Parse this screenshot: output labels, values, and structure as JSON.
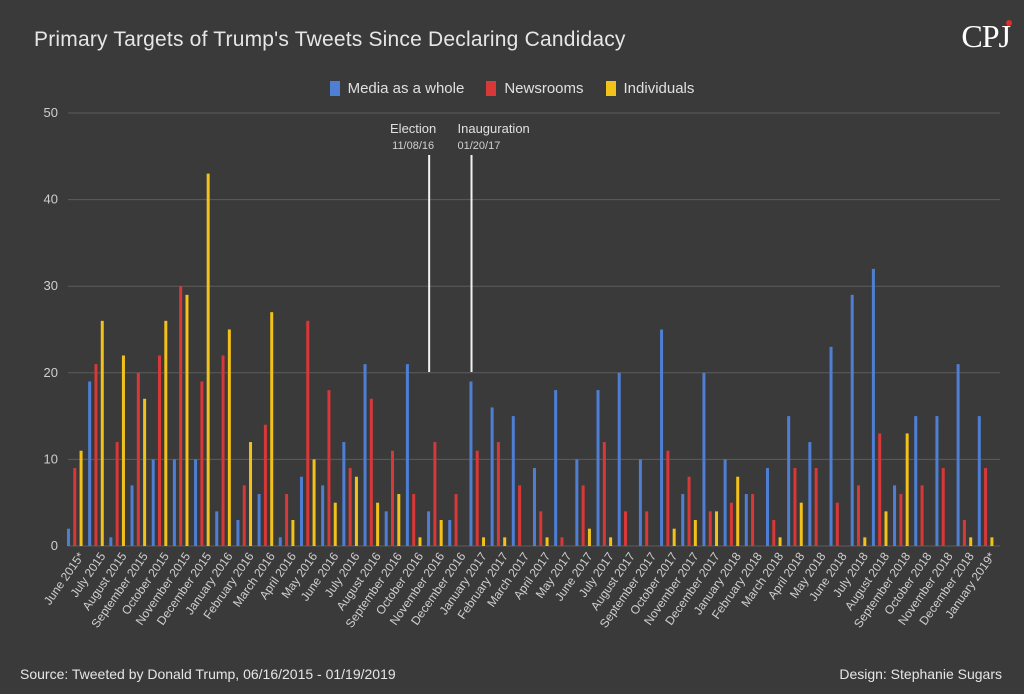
{
  "title": "Primary Targets of Trump's Tweets Since Declaring Candidacy",
  "logo": "CPJ",
  "source": "Source: Tweeted by Donald Trump, 06/16/2015 - 01/19/2019",
  "design": "Design: Stephanie Sugars",
  "colors": {
    "background": "#3a3a3a",
    "media": "#4f7fd4",
    "newsrooms": "#d93838",
    "individuals": "#f2c11a",
    "grid": "#5c5c5c"
  },
  "chart_data": {
    "type": "bar",
    "ylim": [
      0,
      50
    ],
    "yticks": [
      0,
      10,
      20,
      30,
      40,
      50
    ],
    "grid": true,
    "legend_position": "top-center",
    "categories": [
      "June 2015*",
      "July 2015",
      "August 2015",
      "September 2015",
      "October 2015",
      "November 2015",
      "December 2015",
      "January 2016",
      "February 2016",
      "March 2016",
      "April 2016",
      "May 2016",
      "June 2016",
      "July 2016",
      "August 2016",
      "September 2016",
      "October 2016",
      "November 2016",
      "December 2016",
      "January 2017",
      "February 2017",
      "March 2017",
      "April 2017",
      "May 2017",
      "June 2017",
      "July 2017",
      "August 2017",
      "September 2017",
      "October 2017",
      "November 2017",
      "December 2017",
      "January 2018",
      "February 2018",
      "March 2018",
      "April 2018",
      "May 2018",
      "June 2018",
      "July 2018",
      "August 2018",
      "September 2018",
      "October 2018",
      "November 2018",
      "December 2018",
      "January 2019*"
    ],
    "series": [
      {
        "name": "Media as a whole",
        "values": [
          2,
          19,
          1,
          7,
          10,
          10,
          10,
          4,
          3,
          6,
          1,
          8,
          7,
          12,
          21,
          4,
          21,
          4,
          3,
          19,
          16,
          15,
          9,
          18,
          10,
          18,
          20,
          10,
          25,
          6,
          20,
          10,
          6,
          9,
          15,
          12,
          23,
          29,
          32,
          7,
          15,
          15,
          21,
          15
        ]
      },
      {
        "name": "Newsrooms",
        "values": [
          9,
          21,
          12,
          20,
          22,
          30,
          19,
          22,
          7,
          14,
          6,
          26,
          18,
          9,
          17,
          11,
          6,
          12,
          6,
          11,
          12,
          7,
          4,
          1,
          7,
          12,
          4,
          4,
          11,
          8,
          4,
          5,
          6,
          3,
          9,
          9,
          5,
          7,
          13,
          6,
          7,
          9,
          3,
          9
        ]
      },
      {
        "name": "Individuals",
        "values": [
          11,
          26,
          22,
          17,
          26,
          29,
          43,
          25,
          12,
          27,
          3,
          10,
          5,
          8,
          5,
          6,
          1,
          3,
          0,
          1,
          1,
          0,
          1,
          0,
          2,
          1,
          0,
          0,
          2,
          3,
          4,
          8,
          0,
          1,
          5,
          0,
          0,
          1,
          4,
          13,
          0,
          0,
          1,
          1
        ]
      }
    ],
    "annotations": [
      {
        "label": "Election",
        "date": "11/08/16",
        "after_index": 16
      },
      {
        "label": "Inauguration",
        "date": "01/20/17",
        "after_index": 18
      }
    ]
  }
}
